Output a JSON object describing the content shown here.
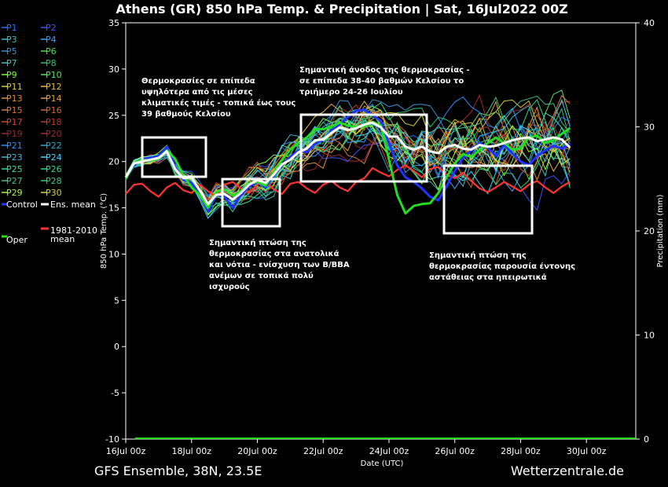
{
  "title": "Athens  (GR)  850 hPa Temp. & Precipitation | Sat, 16Jul2022 00Z",
  "footer_left": "GFS Ensemble, 38N, 23.5E",
  "footer_right": "Wetterzentrale.de",
  "colors": {
    "background": "#000000",
    "control": "#2233ff",
    "ens_mean": "#ffffff",
    "oper": "#22dd22",
    "climate": "#ff3333",
    "annotation_box": "#ffffff"
  },
  "chart_data": {
    "type": "line",
    "title": "Athens  (GR)  850 hPa Temp. & Precipitation | Sat, 16Jul2022 00Z",
    "xlabel": "Date (UTC)",
    "ylabel": "850 hPa Temp. (°C)",
    "y2label": "Precipitation (mm)",
    "x_start": "16Jul 00z",
    "x_step_hours": 6,
    "x_ticks": [
      "16Jul 00z",
      "18Jul 00z",
      "20Jul 00z",
      "22Jul 00z",
      "24Jul 00z",
      "26Jul 00z",
      "28Jul 00z",
      "30Jul 00z"
    ],
    "x_tick_days": [
      0,
      2,
      4,
      6,
      8,
      10,
      12,
      14
    ],
    "x_range_days": [
      0,
      15.5
    ],
    "ylim": [
      -10,
      35
    ],
    "y_ticks": [
      -10,
      -5,
      0,
      5,
      10,
      15,
      20,
      25,
      30,
      35
    ],
    "y2lim": [
      0,
      40
    ],
    "y2_ticks": [
      0,
      10,
      20,
      30,
      40
    ],
    "grid": false,
    "legend": {
      "placement": "left",
      "members": [
        "P1",
        "P2",
        "P3",
        "P4",
        "P5",
        "P6",
        "P7",
        "P8",
        "P9",
        "P10",
        "P11",
        "P12",
        "P13",
        "P14",
        "P15",
        "P16",
        "P17",
        "P18",
        "P19",
        "P20",
        "P21",
        "P22",
        "P23",
        "P24",
        "P25",
        "P26",
        "P27",
        "P28",
        "P29",
        "P30"
      ],
      "member_colors": [
        "#2f6fff",
        "#3a52ff",
        "#37c3c3",
        "#3aa0ff",
        "#3a8fd0",
        "#4fdd4f",
        "#45c6c6",
        "#2fc06a",
        "#7cff3a",
        "#5ee05e",
        "#d8c83a",
        "#e8b84a",
        "#e08a3a",
        "#e0a040",
        "#d07a4a",
        "#c86a3a",
        "#cc4a2a",
        "#bb3a2a",
        "#992a2a",
        "#aa2a2a",
        "#2f8fff",
        "#2aa8cc",
        "#46b6d8",
        "#3ad6ff",
        "#3ad8a6",
        "#2fd88f",
        "#40c090",
        "#3acd70",
        "#a0ff3a",
        "#d8d83a"
      ],
      "control_label": "Control",
      "mean_label": "Ens. mean",
      "oper_label": "Oper",
      "climate_label": "1981-2010 mean"
    },
    "series": [
      {
        "name": "Control",
        "values": [
          18.2,
          19.6,
          20.3,
          20.4,
          20.6,
          21.6,
          19.4,
          18.0,
          17.7,
          16.4,
          14.6,
          16.4,
          16.2,
          15.0,
          16.4,
          17.3,
          17.8,
          17.2,
          18.5,
          19.6,
          20.5,
          21.2,
          21.0,
          21.9,
          22.4,
          23.3,
          24.0,
          24.8,
          25.5,
          25.6,
          25.0,
          24.4,
          22.0,
          19.6,
          18.3,
          17.8,
          17.1,
          16.2,
          15.8,
          17.3,
          19.0,
          20.4,
          21.2,
          22.0,
          21.5,
          20.6,
          21.8,
          20.9,
          20.0,
          19.6,
          20.6,
          21.2,
          21.7,
          21.4,
          21.9
        ]
      },
      {
        "name": "Ens. mean",
        "values": [
          18.3,
          19.8,
          20.0,
          20.2,
          20.4,
          21.1,
          19.2,
          18.2,
          18.3,
          16.9,
          15.4,
          16.4,
          16.5,
          15.9,
          16.6,
          17.5,
          18.0,
          17.7,
          18.6,
          19.7,
          20.2,
          21.0,
          21.4,
          22.3,
          22.4,
          23.1,
          23.7,
          23.4,
          23.6,
          24.0,
          24.2,
          23.7,
          22.7,
          22.7,
          21.6,
          21.3,
          21.6,
          21.1,
          20.9,
          21.6,
          21.8,
          21.4,
          21.3,
          21.8,
          21.6,
          21.7,
          22.0,
          22.3,
          22.5,
          22.6,
          22.2,
          22.4,
          22.6,
          22.4,
          21.5
        ]
      },
      {
        "name": "Oper",
        "values": [
          18.1,
          19.8,
          20.2,
          20.1,
          20.3,
          21.2,
          20.3,
          18.5,
          17.2,
          16.4,
          15.0,
          16.7,
          17.0,
          16.3,
          16.8,
          17.6,
          17.8,
          17.4,
          18.8,
          20.2,
          21.3,
          22.0,
          22.6,
          23.5,
          23.5,
          23.8,
          24.2,
          23.9,
          23.7,
          23.8,
          24.3,
          23.9,
          20.2,
          16.4,
          14.4,
          15.2,
          15.4,
          15.5,
          16.6,
          18.3,
          19.8,
          20.8,
          20.5,
          21.2,
          22.0,
          22.6,
          22.0,
          21.3,
          21.4,
          22.6,
          22.8,
          22.0,
          22.3,
          23.0,
          23.6
        ]
      },
      {
        "name": "1981-2010 mean",
        "values": [
          16.5,
          17.5,
          17.6,
          16.8,
          16.2,
          17.2,
          17.7,
          16.9,
          16.6,
          17.5,
          16.8,
          16.2,
          17.5,
          17.8,
          17.1,
          16.6,
          17.5,
          17.8,
          17.0,
          16.5,
          17.6,
          17.8,
          17.1,
          16.6,
          17.5,
          17.9,
          17.2,
          16.8,
          17.8,
          18.2,
          19.3,
          18.8,
          18.4,
          19.1,
          19.6,
          19.0,
          18.3,
          19.2,
          19.4,
          18.6,
          18.2,
          18.8,
          17.9,
          17.1,
          16.7,
          17.2,
          17.8,
          17.3,
          16.8,
          17.5,
          17.9,
          17.2,
          16.6,
          17.3,
          17.8
        ]
      }
    ],
    "precipitation": {
      "members_total_mm": 0
    }
  },
  "annotations": [
    {
      "text": "Θερμοκρασίες σε επίπεδα υψηλότερα από τις μέσες κλιματικές τιμές - τοπικά έως τους 39 βαθμούς Κελσίου",
      "lines": [
        "Θερμοκρασίες σε επίπεδα",
        "υψηλότερα από τις μέσες",
        "κλιματικές τιμές - τοπικά έως τους",
        "39 βαθμούς Κελσίου"
      ]
    },
    {
      "text": "Σημαντική άνοδος της θερμοκρασίας - σε επίπεδα 38-40 βαθμών Κελσίου το τριήμερο 24-26 Ιουλίου",
      "lines": [
        "Σημαντική άνοδος της θερμοκρασίας -",
        "σε επίπεδα 38-40 βαθμών Κελσίου το",
        "τριήμερο 24-26 Ιουλίου"
      ]
    },
    {
      "text": "Σημαντική πτώση της θερμοκρασίας στα ανατολικά και νότια - ενίσχυση των Β/ΒΒΑ ανέμων σε τοπικά πολύ ισχυρούς",
      "lines": [
        "Σημαντική πτώση της",
        "θερμοκρασίας στα ανατολικά",
        "και νότια - ενίσχυση των Β/ΒΒΑ",
        "ανέμων σε τοπικά πολύ",
        "ισχυρούς"
      ]
    },
    {
      "text": "Σημαντική πτώση της θερμοκρασίας παρουσία έντονης αστάθειας στα ηπειρωτικά",
      "lines": [
        "Σημαντική πτώση της",
        "θερμοκρασίας παρουσία έντονης",
        "αστάθειας στα ηπειρωτικά"
      ]
    }
  ]
}
